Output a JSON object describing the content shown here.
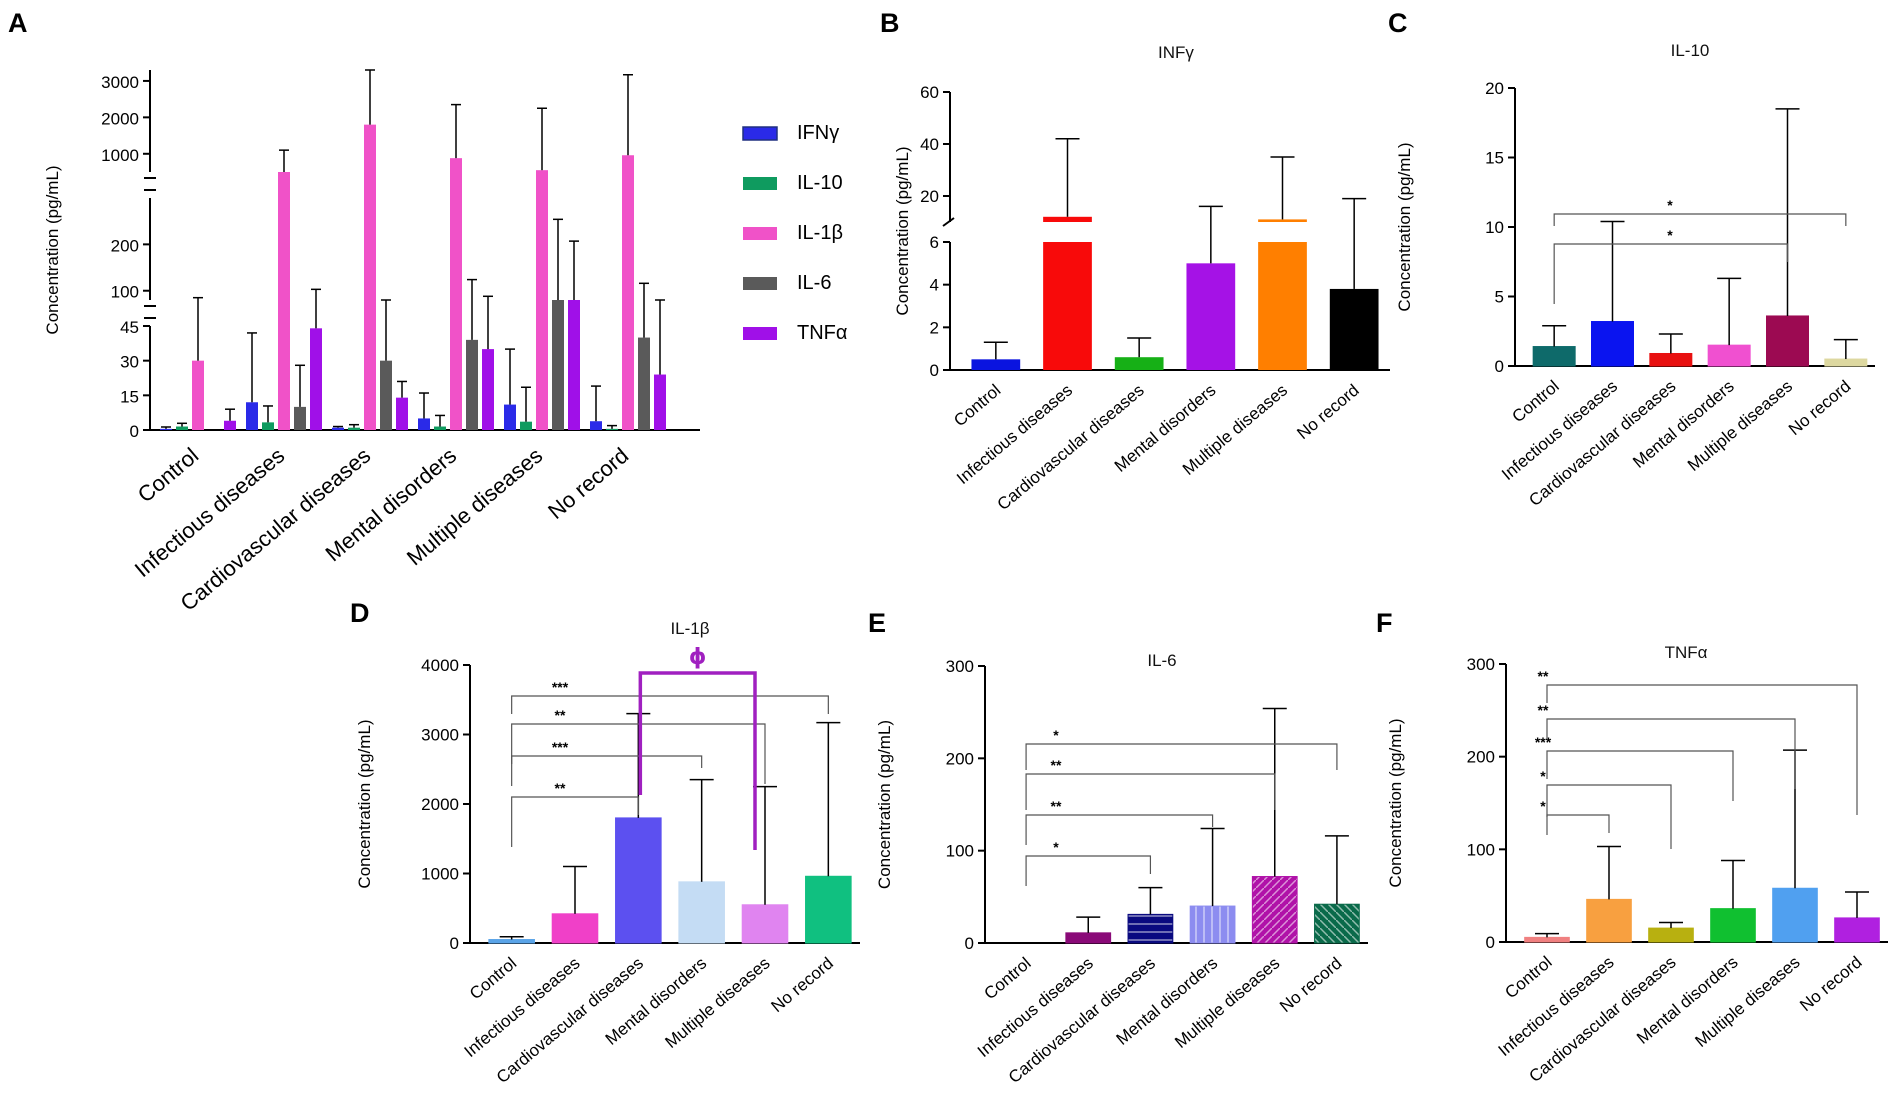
{
  "chart_data": [
    {
      "panel": "A",
      "type": "bar",
      "title": "",
      "ylabel": "Concentration (pg/mL)",
      "categories": [
        "Control",
        "Infectious diseases",
        "Cardiovascular diseases",
        "Mental disorders",
        "Multiple diseases",
        "No record"
      ],
      "yticks": [
        "0",
        "15",
        "30",
        "45",
        "100",
        "200",
        "1000",
        "2000",
        "3000"
      ],
      "axis_break_segments": [
        [
          0,
          45
        ],
        [
          80,
          300
        ],
        [
          500,
          3300
        ]
      ],
      "series": [
        {
          "name": "IFNγ",
          "color": "#2a2ae8",
          "values": [
            0.5,
            12,
            1,
            5,
            11,
            3.8
          ],
          "errors": [
            1.3,
            42,
            1.5,
            16,
            35,
            19
          ]
        },
        {
          "name": "IL-10",
          "color": "#0f9b5f",
          "values": [
            1.5,
            3.3,
            1,
            1.5,
            3.6,
            0.5
          ],
          "errors": [
            2.9,
            10.4,
            2.3,
            6.3,
            18.5,
            1.9
          ]
        },
        {
          "name": "IL-1β",
          "color": "#f052c8",
          "values": [
            30,
            420,
            1800,
            880,
            550,
            960
          ],
          "errors": [
            85,
            1100,
            3300,
            2350,
            2250,
            3170
          ]
        },
        {
          "name": "IL-6",
          "color": "#5a5a5a",
          "values": [
            0,
            10,
            30,
            39,
            72,
            40
          ],
          "errors": [
            0,
            28,
            60,
            124,
            254,
            116
          ]
        },
        {
          "name": "TNFα",
          "color": "#a010e8",
          "values": [
            4,
            44,
            14,
            35,
            58,
            24
          ],
          "errors": [
            9,
            103,
            21,
            88,
            207,
            54
          ]
        }
      ]
    },
    {
      "panel": "B",
      "type": "bar",
      "title": "INFγ",
      "ylabel": "Concentration (pg/mL)",
      "categories": [
        "Control",
        "Infectious diseases",
        "Cardiovascular diseases",
        "Mental disorders",
        "Multiple diseases",
        "No record"
      ],
      "values": [
        0.5,
        12,
        0.6,
        5,
        11,
        3.8
      ],
      "errors": [
        1.3,
        42,
        1.5,
        16,
        35,
        19
      ],
      "colors": [
        "#0a14e0",
        "#f80a0a",
        "#16b016",
        "#a512e6",
        "#ff7f00",
        "#000000"
      ],
      "yticks": [
        "0",
        "2",
        "4",
        "6",
        "20",
        "40",
        "60"
      ],
      "axis_break_segments": [
        [
          0,
          6
        ],
        [
          10,
          60
        ]
      ]
    },
    {
      "panel": "C",
      "type": "bar",
      "title": "IL-10",
      "ylabel": "Concentration (pg/mL)",
      "categories": [
        "Control",
        "Infectious diseases",
        "Cardiovascular diseases",
        "Mental disorders",
        "Multiple diseases",
        "No record"
      ],
      "values": [
        1.4,
        3.2,
        0.9,
        1.5,
        3.6,
        0.5
      ],
      "errors": [
        2.9,
        10.4,
        2.3,
        6.3,
        18.5,
        1.9
      ],
      "colors": [
        "#0e6a6a",
        "#0a14f0",
        "#e81010",
        "#f050d0",
        "#9c0a52",
        "#ddd8a0"
      ],
      "ylim": [
        0,
        20
      ],
      "yticks": [
        "0",
        "5",
        "10",
        "15",
        "20"
      ],
      "significance": [
        {
          "from": 0,
          "to": 5,
          "label": "*"
        },
        {
          "from": 0,
          "to": 4,
          "label": "*"
        }
      ]
    },
    {
      "panel": "D",
      "type": "bar",
      "title": "IL-1β",
      "ylabel": "Concentration (pg/mL)",
      "categories": [
        "Control",
        "Infectious diseases",
        "Cardiovascular diseases",
        "Mental disorders",
        "Multiple diseases",
        "No record"
      ],
      "values": [
        50,
        420,
        1800,
        880,
        550,
        960
      ],
      "errors": [
        90,
        1100,
        3300,
        2350,
        2250,
        3170
      ],
      "colors": [
        "#5aa4e8",
        "#f040c8",
        "#5c50f0",
        "#c4dcf4",
        "#e084f0",
        "#10c080"
      ],
      "ylim": [
        0,
        4000
      ],
      "yticks": [
        "0",
        "1000",
        "2000",
        "3000",
        "4000"
      ],
      "significance": [
        {
          "from": 0,
          "to": 5,
          "label": "***"
        },
        {
          "from": 0,
          "to": 4,
          "label": "**"
        },
        {
          "from": 0,
          "to": 3,
          "label": "***"
        },
        {
          "from": 0,
          "to": 2,
          "label": "**"
        }
      ],
      "special_bracket": {
        "from": 2,
        "to": 4,
        "label": "ϕ",
        "color": "#a020c0"
      }
    },
    {
      "panel": "E",
      "type": "bar",
      "title": "IL-6",
      "ylabel": "Concentration (pg/mL)",
      "categories": [
        "Control",
        "Infectious diseases",
        "Cardiovascular diseases",
        "Mental disorders",
        "Multiple diseases",
        "No record"
      ],
      "values": [
        0,
        11,
        31,
        40,
        72,
        42
      ],
      "errors": [
        0,
        28,
        60,
        124,
        254,
        116
      ],
      "colors": [
        "#000000",
        "#8a0a78",
        "#0a0a80",
        "#8c8cf0",
        "#b012a8",
        "#0a6a4a"
      ],
      "ylim": [
        0,
        300
      ],
      "yticks": [
        "0",
        "100",
        "200",
        "300"
      ],
      "significance": [
        {
          "from": 0,
          "to": 5,
          "label": "*"
        },
        {
          "from": 0,
          "to": 4,
          "label": "**"
        },
        {
          "from": 0,
          "to": 3,
          "label": "**"
        },
        {
          "from": 0,
          "to": 2,
          "label": "*"
        }
      ]
    },
    {
      "panel": "F",
      "type": "bar",
      "title": "TNFα",
      "ylabel": "Concentration (pg/mL)",
      "categories": [
        "Control",
        "Infectious diseases",
        "Cardiovascular diseases",
        "Mental disorders",
        "Multiple diseases",
        "No record"
      ],
      "values": [
        5,
        46,
        15,
        36,
        58,
        26
      ],
      "errors": [
        9,
        103,
        21,
        88,
        207,
        54
      ],
      "colors": [
        "#f08080",
        "#f8a040",
        "#b8b010",
        "#10c030",
        "#50a0f0",
        "#b020e0"
      ],
      "ylim": [
        0,
        300
      ],
      "yticks": [
        "0",
        "100",
        "200",
        "300"
      ],
      "significance": [
        {
          "from": 0,
          "to": 5,
          "label": "**"
        },
        {
          "from": 0,
          "to": 4,
          "label": "**"
        },
        {
          "from": 0,
          "to": 3,
          "label": "***"
        },
        {
          "from": 0,
          "to": 2,
          "label": "*"
        },
        {
          "from": 0,
          "to": 1,
          "label": "*"
        }
      ]
    }
  ]
}
